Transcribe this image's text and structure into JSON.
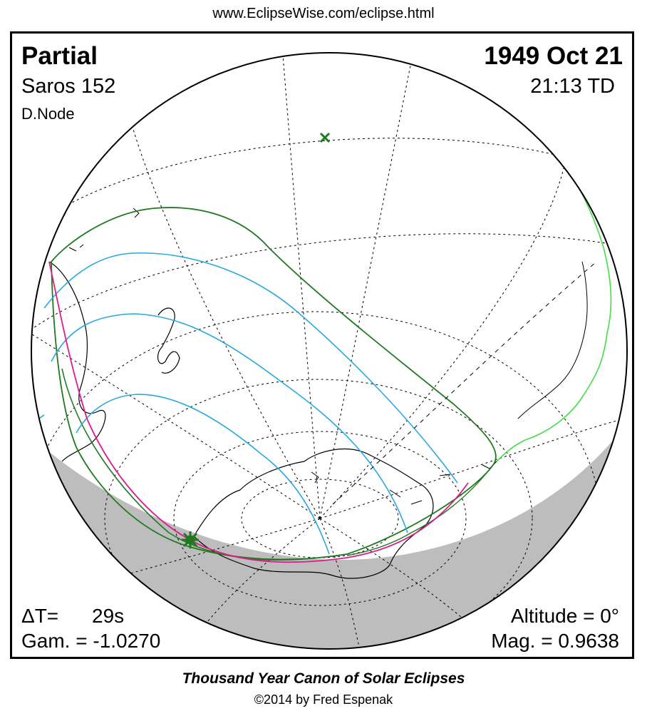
{
  "header": {
    "url": "www.EclipseWise.com/eclipse.html"
  },
  "eclipse": {
    "type": "Partial",
    "date": "1949 Oct 21",
    "saros": "Saros 152",
    "time": "21:13 TD",
    "node": "D.Node"
  },
  "stats": {
    "delta_t_label": "ΔT=",
    "delta_t_value": "29s",
    "altitude": "Altitude =  0°",
    "gamma": "Gam. = -1.0270",
    "magnitude": "Mag. = 0.9638"
  },
  "footer": {
    "title": "Thousand Year Canon of Solar Eclipses",
    "copyright": "©2014 by Fred Espenak"
  },
  "colors": {
    "penumbral_limit": "#1f7a1f",
    "magnitude_curves": "#29a8e0",
    "rise_set_curve": "#e0198c",
    "land_outline": "#000000",
    "highlight_coast": "#44dd44",
    "night_shade": "#bdbdbd",
    "greatest_eclipse_marker": "#1f7a1f",
    "sub_solar_marker": "#1f7a1f"
  },
  "markers": {
    "greatest_eclipse_icon": "star-burst-icon",
    "pole_icon": "x-cross-icon"
  }
}
